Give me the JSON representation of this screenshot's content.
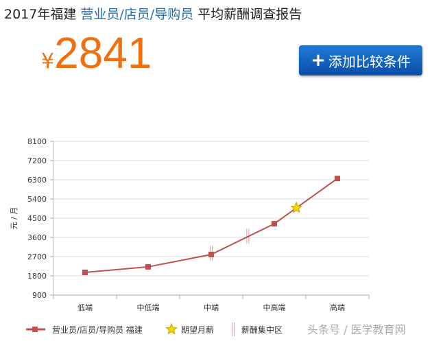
{
  "header": {
    "title_prefix": "2017年福建",
    "title_highlight": "营业员/店员/导购员",
    "title_suffix": "平均薪酬调查报告"
  },
  "average": {
    "currency": "¥",
    "value": "2841"
  },
  "button": {
    "icon": "plus-icon",
    "label": "添加比较条件"
  },
  "watermark": "头条号 / 医学教育网",
  "colors": {
    "line": "#c0504d",
    "star": "#f5d800",
    "accent": "#f07010",
    "button": "#0a5fc0"
  },
  "chart_data": {
    "type": "line",
    "ylabel": "元 / 月",
    "ylim": [
      900,
      8100
    ],
    "yticks": [
      "900",
      "1800",
      "2700",
      "3600",
      "4500",
      "5400",
      "6300",
      "7200",
      "8100"
    ],
    "categories": [
      "低端",
      "中低端",
      "中端",
      "中高端",
      "高端"
    ],
    "series": [
      {
        "name": "营业员/店员/导购员 福建",
        "values": [
          1960,
          2220,
          2800,
          4240,
          6360
        ]
      }
    ],
    "expected": {
      "name": "期望月薪",
      "position": 3.35,
      "value": 4980
    },
    "concentration": {
      "name": "薪酬集中区",
      "markers": [
        {
          "position": 2,
          "low": 2500,
          "high": 3200
        },
        {
          "position": 2.58,
          "low": 3300,
          "high": 4000
        }
      ]
    },
    "grid": true,
    "legend": "bottom"
  }
}
